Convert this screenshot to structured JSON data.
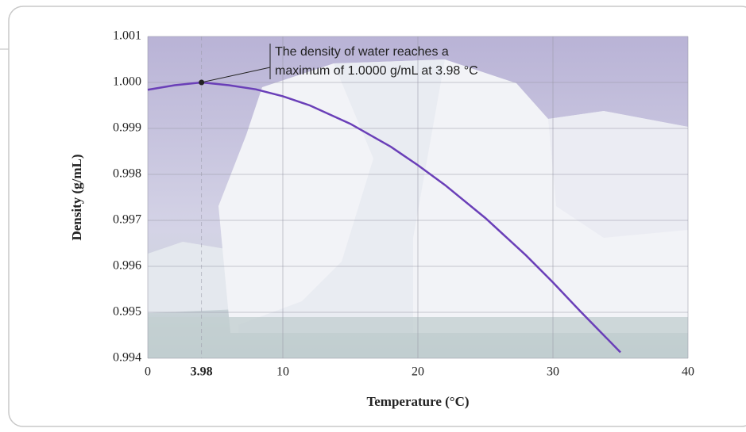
{
  "chart_data": {
    "type": "line",
    "x_label": "Temperature (°C)",
    "y_label": "Density (g/mL)",
    "annotation": [
      "The density of water reaches a",
      "maximum of 1.0000 g/mL at 3.98 °C"
    ],
    "x": [
      0,
      2,
      3.98,
      6,
      8,
      10,
      12,
      15,
      18,
      20,
      22,
      25,
      28,
      30,
      32,
      35
    ],
    "values": [
      0.99984,
      0.99994,
      1.0,
      0.99994,
      0.99985,
      0.9997,
      0.9995,
      0.9991,
      0.9986,
      0.9982,
      0.99777,
      0.99705,
      0.99624,
      0.99565,
      0.99503,
      0.99413
    ],
    "color": "#6a3fb8",
    "point": {
      "x": 3.98,
      "y": 1
    },
    "xlim": [
      0,
      40
    ],
    "ylim": [
      0.994,
      1.001
    ],
    "xticks": [
      0,
      {
        "value": 3.98,
        "label": "3.98"
      },
      10,
      20,
      30,
      40
    ],
    "yticks": [
      0.994,
      0.995,
      0.996,
      0.997,
      0.998,
      0.999,
      {
        "value": 1,
        "label": "1.000"
      },
      1.001
    ],
    "grid": true
  }
}
